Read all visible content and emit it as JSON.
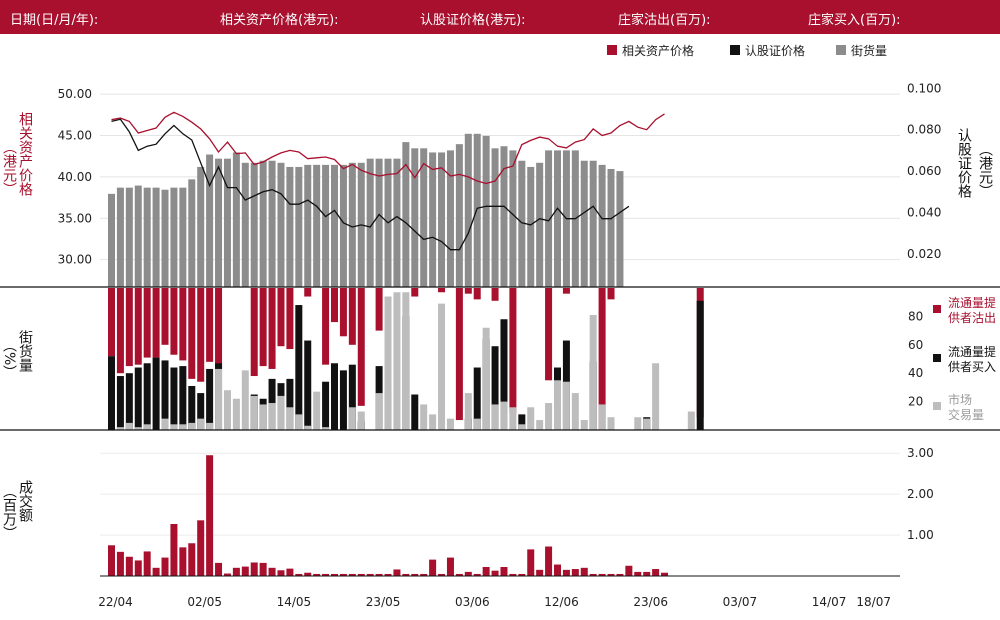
{
  "header": {
    "date": "日期(日/月/年):",
    "underlying_price": "相关资产价格(港元):",
    "warrant_price": "认股证价格(港元):",
    "dealer_sold": "庄家沽出(百万):",
    "dealer_bought": "庄家买入(百万):"
  },
  "colors": {
    "red": "#a8102e",
    "black": "#111111",
    "gray": "#8c8c8c",
    "lightgray": "#bdbdbd"
  },
  "chart_data": {
    "type": "line+bar",
    "x_labels": [
      "22/04",
      "02/05",
      "14/05",
      "23/05",
      "03/06",
      "12/06",
      "23/06",
      "03/07",
      "14/07",
      "18/07"
    ],
    "x_label_index": [
      0,
      10,
      20,
      30,
      40,
      50,
      60,
      70,
      80,
      85
    ],
    "legend": [
      "相关资产价格",
      "认股证价格",
      "街货量"
    ],
    "price_panel": {
      "left_axis": {
        "label": "相关资产价格",
        "unit": "（港元）",
        "ticks": [
          "50.00",
          "45.00",
          "40.00",
          "35.00",
          "30.00"
        ],
        "range": [
          26.7,
          51.7
        ]
      },
      "right_axis": {
        "label": "认股证价格",
        "unit": "（港元）",
        "ticks": [
          "0.100",
          "0.080",
          "0.060",
          "0.040",
          "0.020"
        ],
        "range": [
          0.004,
          0.104
        ]
      },
      "underlying_price": [
        46.9,
        47.1,
        46.7,
        45.3,
        45.6,
        45.9,
        47.2,
        47.8,
        47.3,
        46.6,
        45.8,
        44.6,
        43.0,
        44.2,
        42.8,
        42.9,
        41.5,
        41.8,
        42.4,
        42.9,
        43.2,
        43.0,
        42.2,
        42.3,
        42.4,
        42.1,
        41.0,
        41.5,
        40.8,
        40.4,
        40.1,
        40.3,
        40.4,
        41.5,
        39.9,
        41.6,
        40.9,
        41.1,
        40.1,
        40.3,
        40.0,
        39.5,
        39.2,
        39.5,
        41.0,
        41.3,
        43.9,
        44.4,
        44.8,
        44.6,
        43.7,
        43.5,
        44.2,
        44.5,
        45.8,
        45.0,
        45.3,
        46.2,
        46.7,
        46.0,
        45.7,
        46.9,
        47.6
      ],
      "warrant_price": [
        0.084,
        0.085,
        0.079,
        0.07,
        0.072,
        0.073,
        0.078,
        0.082,
        0.078,
        0.075,
        0.064,
        0.053,
        0.062,
        0.052,
        0.052,
        0.046,
        0.048,
        0.05,
        0.051,
        0.049,
        0.044,
        0.044,
        0.046,
        0.043,
        0.038,
        0.041,
        0.035,
        0.033,
        0.034,
        0.033,
        0.039,
        0.035,
        0.038,
        0.035,
        0.031,
        0.027,
        0.028,
        0.026,
        0.022,
        0.022,
        0.03,
        0.042,
        0.043,
        0.043,
        0.043,
        0.039,
        0.035,
        0.034,
        0.037,
        0.036,
        0.042,
        0.037,
        0.037,
        0.04,
        0.043,
        0.037,
        0.037,
        0.04,
        0.043
      ],
      "outstanding_pct": [
        45,
        48,
        48,
        49,
        48,
        48,
        47,
        48,
        48,
        52,
        58,
        64,
        62,
        62,
        65,
        60,
        60,
        61,
        61,
        60,
        58,
        58,
        59,
        59,
        59,
        59,
        59,
        60,
        60,
        62,
        62,
        62,
        62,
        70,
        67,
        67,
        65,
        65,
        66,
        69,
        74,
        74,
        73,
        67,
        68,
        66,
        61,
        58,
        60,
        66,
        66,
        66,
        66,
        61,
        61,
        59,
        57,
        56
      ]
    },
    "flow_panel": {
      "ticks": [
        "80",
        "60",
        "40",
        "20"
      ],
      "range": [
        0,
        100
      ],
      "legend": [
        "流通量提供者沽出",
        "流通量提供者买入",
        "市场交易量"
      ],
      "y_label": "街货量",
      "y_unit": "（%）",
      "sold": [
        48,
        60,
        55,
        54,
        49,
        49,
        40,
        47,
        51,
        64,
        66,
        52,
        57,
        0,
        0,
        0,
        62,
        55,
        57,
        41,
        43,
        0,
        6,
        0,
        54,
        24,
        34,
        40,
        83,
        0,
        30,
        0,
        0,
        0,
        6,
        0,
        0,
        3,
        0,
        93,
        4,
        8,
        0,
        9,
        0,
        88,
        0,
        0,
        0,
        65,
        0,
        4,
        0,
        0,
        0,
        100,
        8,
        0,
        0,
        0,
        0,
        0,
        0,
        0,
        0,
        0,
        91,
        0,
        0,
        0,
        0,
        0,
        0
      ],
      "bought": [
        52,
        38,
        40,
        44,
        47,
        51,
        49,
        44,
        45,
        31,
        26,
        43,
        47,
        0,
        0,
        0,
        25,
        22,
        36,
        33,
        36,
        88,
        63,
        0,
        34,
        47,
        42,
        46,
        6,
        0,
        45,
        27,
        0,
        80,
        25,
        0,
        0,
        0,
        0,
        0,
        8,
        44,
        64,
        59,
        78,
        0,
        11,
        0,
        0,
        0,
        44,
        63,
        0,
        0,
        48,
        0,
        0,
        0,
        0,
        0,
        9,
        0,
        0,
        0,
        0,
        0,
        91,
        0,
        0,
        0,
        0,
        0,
        0
      ],
      "market": [
        0,
        2,
        5,
        2,
        4,
        0,
        8,
        4,
        4,
        5,
        8,
        5,
        43,
        28,
        22,
        42,
        24,
        18,
        19,
        24,
        16,
        11,
        3,
        27,
        2,
        0,
        0,
        16,
        13,
        0,
        26,
        94,
        97,
        97,
        0,
        18,
        11,
        89,
        8,
        0,
        26,
        8,
        72,
        18,
        20,
        16,
        4,
        16,
        7,
        19,
        35,
        34,
        26,
        7,
        81,
        18,
        9,
        0,
        0,
        9,
        8,
        47,
        0,
        0,
        0,
        13,
        0,
        0,
        0,
        0,
        0,
        0,
        0
      ]
    },
    "volume_panel": {
      "ticks": [
        "3.00",
        "2.00",
        "1.00"
      ],
      "range": [
        0,
        3.2
      ],
      "y_label": "成交额",
      "y_unit": "（百万）",
      "volume": [
        0.75,
        0.59,
        0.47,
        0.38,
        0.6,
        0.2,
        0.45,
        1.27,
        0.7,
        0.8,
        1.36,
        2.95,
        0.32,
        0.06,
        0.2,
        0.23,
        0.33,
        0.32,
        0.2,
        0.14,
        0.18,
        0.05,
        0.08,
        0.05,
        0.05,
        0.05,
        0.05,
        0.05,
        0.05,
        0.05,
        0.05,
        0.05,
        0.16,
        0.05,
        0.05,
        0.05,
        0.4,
        0.05,
        0.45,
        0.05,
        0.1,
        0.05,
        0.22,
        0.13,
        0.22,
        0.05,
        0.05,
        0.65,
        0.15,
        0.72,
        0.28,
        0.15,
        0.17,
        0.2,
        0.05,
        0.05,
        0.05,
        0.05,
        0.25,
        0.1,
        0.1,
        0.17,
        0.08
      ]
    }
  }
}
